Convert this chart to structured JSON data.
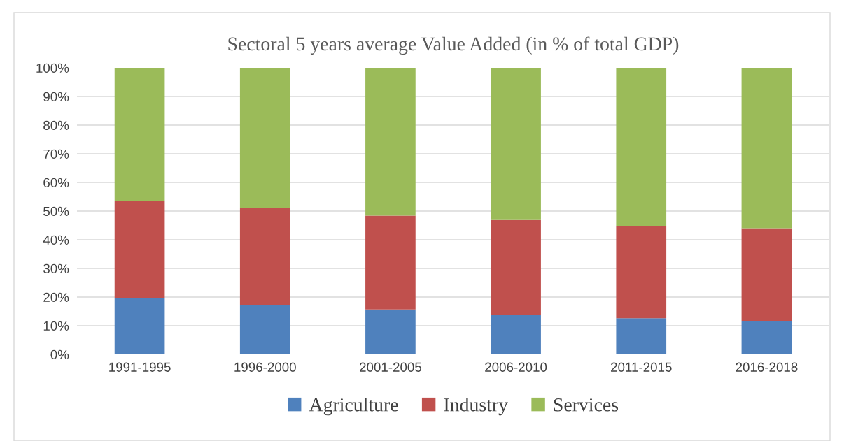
{
  "chart_data": {
    "type": "bar",
    "title": "Sectoral 5 years average Value Added (in % of total GDP)",
    "categories": [
      "1991-1995",
      "1996-2000",
      "2001-2005",
      "2006-2010",
      "2011-2015",
      "2016-2018"
    ],
    "stacked": true,
    "series": [
      {
        "name": "Agriculture",
        "color": "#4f81bd",
        "values": [
          19.6,
          17.3,
          15.7,
          13.7,
          12.6,
          11.5
        ]
      },
      {
        "name": "Industry",
        "color": "#c0504d",
        "values": [
          33.9,
          33.7,
          32.7,
          33.2,
          32.2,
          32.5
        ]
      },
      {
        "name": "Services",
        "color": "#9bbb59",
        "values": [
          46.5,
          49.0,
          51.6,
          53.1,
          55.2,
          56.0
        ]
      }
    ],
    "ylim": [
      0,
      100
    ],
    "yticks": [
      {
        "value": 0,
        "label": "0%"
      },
      {
        "value": 10,
        "label": "10%"
      },
      {
        "value": 20,
        "label": "20%"
      },
      {
        "value": 30,
        "label": "30%"
      },
      {
        "value": 40,
        "label": "40%"
      },
      {
        "value": 50,
        "label": "50%"
      },
      {
        "value": 60,
        "label": "60%"
      },
      {
        "value": 70,
        "label": "70%"
      },
      {
        "value": 80,
        "label": "80%"
      },
      {
        "value": 90,
        "label": "90%"
      },
      {
        "value": 100,
        "label": "100%"
      }
    ],
    "grid": "y",
    "legend": "bottom"
  }
}
